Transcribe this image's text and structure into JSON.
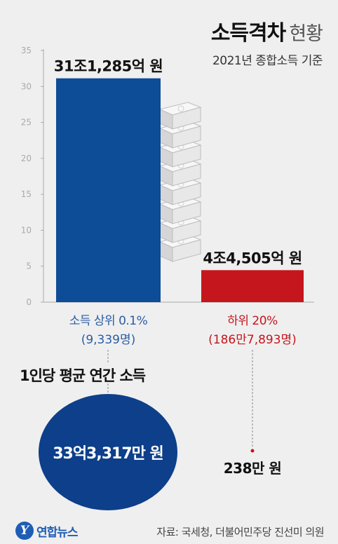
{
  "title": {
    "strong": "소득격차",
    "light": "현황"
  },
  "subtitle": "2021년 종합소득 기준",
  "colors": {
    "top": "#0d4c97",
    "bottom": "#c4161c",
    "circle": "#0d3f8a",
    "logo": "#1f5db5",
    "axis": "#aaaaaa"
  },
  "chart_data": {
    "type": "bar",
    "categories": [
      "소득 상위 0.1%",
      "하위 20%"
    ],
    "values": [
      31.1285,
      4.4505
    ],
    "value_labels": [
      "31조1,285억 원",
      "4조4,505억 원"
    ],
    "sub_labels": [
      "(9,339명)",
      "(186만7,893명)"
    ],
    "ylim": [
      0,
      35
    ],
    "yticks": [
      0,
      5,
      10,
      15,
      20,
      25,
      30,
      35
    ],
    "grid": false
  },
  "average": {
    "label": "1인당 평균 연간 소득",
    "top_value": "33억3,317만 원",
    "bottom_value": "238만 원"
  },
  "logo": {
    "mark": "Y",
    "text": "연합뉴스"
  },
  "source": "자료: 국세청, 더불어민주당 진선미 의원"
}
